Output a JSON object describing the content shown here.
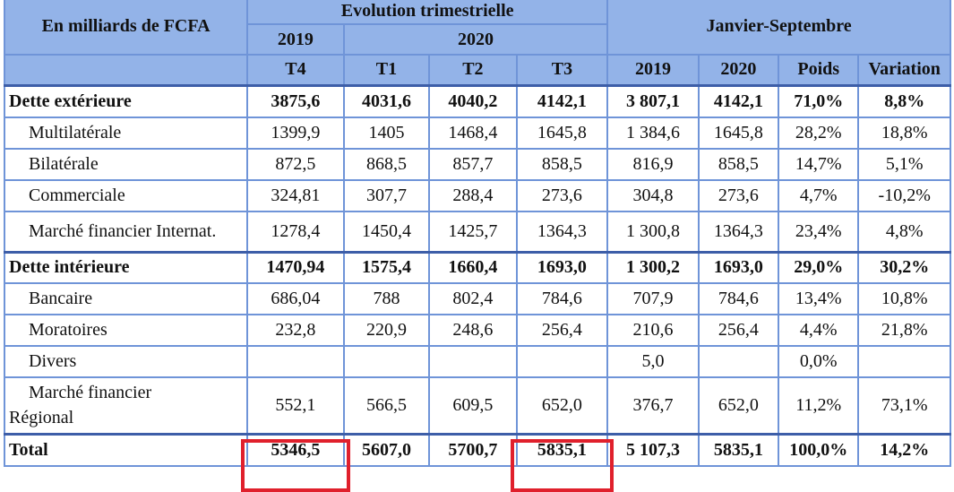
{
  "header": {
    "corner": "En milliards de FCFA",
    "group_quarterly": "Evolution trimestrielle",
    "group_jan_sep": "Janvier-Septembre",
    "year_2019": "2019",
    "year_2020": "2020",
    "columns": [
      "T4",
      "T1",
      "T2",
      "T3",
      "2019",
      "2020",
      "Poids",
      "Variation"
    ]
  },
  "rows": [
    {
      "label": "Dette extérieure",
      "cells": [
        "3875,6",
        "4031,6",
        "4040,2",
        "4142,1",
        "3 807,1",
        "4142,1",
        "71,0%",
        "8,8%"
      ]
    },
    {
      "label": "Multilatérale",
      "cells": [
        "1399,9",
        "1405",
        "1468,4",
        "1645,8",
        "1 384,6",
        "1645,8",
        "28,2%",
        "18,8%"
      ]
    },
    {
      "label": "Bilatérale",
      "cells": [
        "872,5",
        "868,5",
        "857,7",
        "858,5",
        "816,9",
        "858,5",
        "14,7%",
        "5,1%"
      ]
    },
    {
      "label": "Commerciale",
      "cells": [
        "324,81",
        "307,7",
        "288,4",
        "273,6",
        "304,8",
        "273,6",
        "4,7%",
        "-10,2%"
      ]
    },
    {
      "label": "Marché financier Internat.",
      "cells": [
        "1278,4",
        "1450,4",
        "1425,7",
        "1364,3",
        "1 300,8",
        "1364,3",
        "23,4%",
        "4,8%"
      ]
    },
    {
      "label": "Dette intérieure",
      "cells": [
        "1470,94",
        "1575,4",
        "1660,4",
        "1693,0",
        "1 300,2",
        "1693,0",
        "29,0%",
        "30,2%"
      ]
    },
    {
      "label": "Bancaire",
      "cells": [
        "686,04",
        "788",
        "802,4",
        "784,6",
        "707,9",
        "784,6",
        "13,4%",
        "10,8%"
      ]
    },
    {
      "label": "Moratoires",
      "cells": [
        "232,8",
        "220,9",
        "248,6",
        "256,4",
        "210,6",
        "256,4",
        "4,4%",
        "21,8%"
      ]
    },
    {
      "label": "Divers",
      "cells": [
        "",
        "",
        "",
        "",
        "5,0",
        "",
        "0,0%",
        ""
      ]
    },
    {
      "label_line1": "Marché financier",
      "label_line2": "Régional",
      "cells": [
        "552,1",
        "566,5",
        "609,5",
        "652,0",
        "376,7",
        "652,0",
        "11,2%",
        "73,1%"
      ]
    },
    {
      "label": "Total",
      "cells": [
        "5346,5",
        "5607,0",
        "5700,7",
        "5835,1",
        "5 107,3",
        "5835,1",
        "100,0%",
        "14,2%"
      ]
    }
  ]
}
